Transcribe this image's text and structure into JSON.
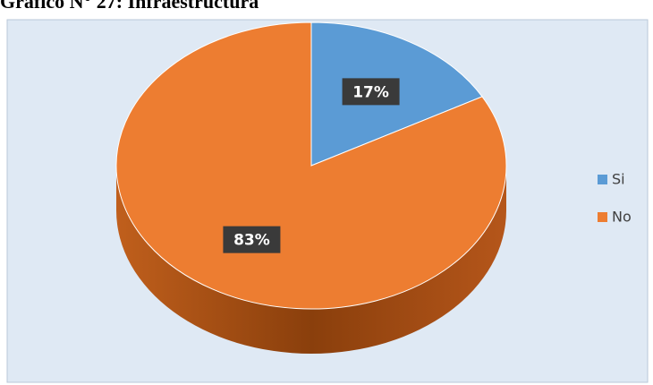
{
  "chart_data": {
    "type": "pie",
    "title": "Gráfico N° 27: Infraestructura",
    "categories": [
      "Si",
      "No"
    ],
    "values": [
      17,
      83
    ],
    "value_labels": [
      "17%",
      "83%"
    ],
    "colors": [
      "#5b9bd5",
      "#ed7d31"
    ],
    "legend": "right"
  }
}
